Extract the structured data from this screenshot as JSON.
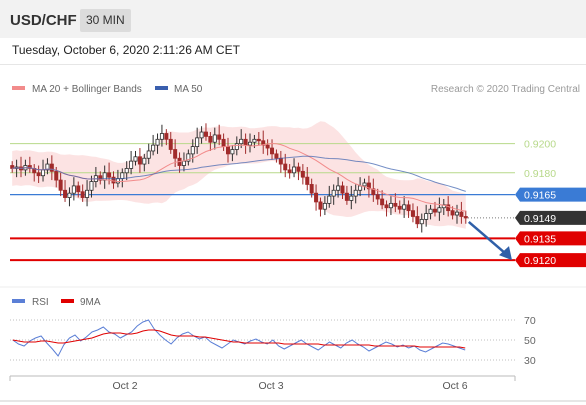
{
  "header": {
    "symbol": "USD/CHF",
    "timeframe": "30 MIN",
    "datetime": "Tuesday, October 6, 2020 2:11:26 AM CET"
  },
  "legend": {
    "ma20_label": "MA 20 + Bollinger Bands",
    "ma50_label": "MA 50",
    "ma20_color": "#f28b8b",
    "ma50_color": "#3a5fae",
    "watermark": "Research © 2020 Trading Central"
  },
  "rsi_legend": {
    "rsi_label": "RSI",
    "ma_label": "9MA",
    "rsi_color": "#5b7fd6",
    "ma_color": "#e00000"
  },
  "chart_data": [
    {
      "type": "candlestick",
      "title": "USD/CHF 30 MIN",
      "x_ticks": [
        "Oct 2",
        "Oct 3",
        "Oct 6"
      ],
      "ylim": [
        0.9105,
        0.923
      ],
      "resistance_lines": [
        0.92,
        0.918
      ],
      "key_level": 0.9165,
      "last_price": 0.9149,
      "targets": [
        0.9135,
        0.912
      ],
      "price_labels": [
        "0.9200",
        "0.9180",
        "0.9165",
        "0.9149",
        "0.9135",
        "0.9120"
      ],
      "colors": {
        "resistance": "#b7d98a",
        "key": "#3a7bd5",
        "target": "#e00000",
        "last": "#333333",
        "arrow": "#2f5fa8"
      },
      "closes": [
        0.9183,
        0.9184,
        0.9182,
        0.9185,
        0.9183,
        0.918,
        0.9178,
        0.9182,
        0.9186,
        0.9181,
        0.9175,
        0.9168,
        0.9163,
        0.9166,
        0.9171,
        0.9167,
        0.9163,
        0.9168,
        0.9174,
        0.9178,
        0.9175,
        0.918,
        0.9177,
        0.9173,
        0.9176,
        0.918,
        0.9183,
        0.9188,
        0.9191,
        0.9186,
        0.919,
        0.9195,
        0.9199,
        0.9203,
        0.9207,
        0.9203,
        0.9196,
        0.919,
        0.9185,
        0.9188,
        0.9193,
        0.9198,
        0.9204,
        0.9208,
        0.9205,
        0.9201,
        0.9206,
        0.9203,
        0.9198,
        0.9193,
        0.9196,
        0.92,
        0.9203,
        0.9199,
        0.9201,
        0.9203,
        0.9202,
        0.9199,
        0.9197,
        0.9193,
        0.919,
        0.9186,
        0.9182,
        0.918,
        0.9184,
        0.9181,
        0.9177,
        0.9172,
        0.9166,
        0.916,
        0.9155,
        0.9159,
        0.9164,
        0.9168,
        0.9171,
        0.9166,
        0.9161,
        0.9164,
        0.9168,
        0.9171,
        0.9173,
        0.9169,
        0.9165,
        0.9162,
        0.9158,
        0.9156,
        0.9159,
        0.9157,
        0.9155,
        0.9158,
        0.9154,
        0.915,
        0.9145,
        0.9148,
        0.9152,
        0.9155,
        0.9153,
        0.9156,
        0.9158,
        0.9154,
        0.9151,
        0.9153,
        0.915,
        0.9149
      ]
    },
    {
      "type": "line",
      "title": "RSI",
      "x_ticks": [
        "Oct 2",
        "Oct 3",
        "Oct 6"
      ],
      "y_ticks": [
        70,
        50,
        30
      ],
      "ylim": [
        20,
        80
      ],
      "series": [
        {
          "name": "RSI",
          "values": [
            50,
            46,
            44,
            49,
            52,
            54,
            47,
            41,
            34,
            45,
            52,
            55,
            49,
            53,
            58,
            60,
            63,
            58,
            56,
            52,
            55,
            58,
            64,
            68,
            70,
            61,
            55,
            50,
            46,
            52,
            56,
            58,
            54,
            51,
            53,
            48,
            45,
            42,
            46,
            50,
            48,
            46,
            49,
            51,
            48,
            46,
            50,
            44,
            41,
            44,
            47,
            50,
            46,
            43,
            40,
            44,
            48,
            45,
            42,
            47,
            50,
            46,
            43,
            39,
            42,
            45,
            48,
            46,
            43,
            45,
            42,
            44,
            40,
            38,
            41,
            44,
            47,
            46,
            44,
            42,
            40
          ]
        },
        {
          "name": "9MA",
          "values": [
            50,
            49,
            48,
            48,
            48,
            49,
            49,
            48,
            47,
            47,
            48,
            49,
            50,
            51,
            52,
            54,
            56,
            57,
            57,
            57,
            56,
            56,
            57,
            59,
            60,
            60,
            59,
            57,
            55,
            54,
            54,
            54,
            54,
            53,
            53,
            52,
            51,
            50,
            49,
            48,
            48,
            47,
            47,
            47,
            47,
            47,
            47,
            47,
            46,
            46,
            46,
            46,
            46,
            46,
            46,
            45,
            45,
            45,
            45,
            45,
            45,
            45,
            45,
            45,
            44,
            44,
            44,
            44,
            44,
            44,
            44,
            44,
            43,
            43,
            43,
            43,
            43,
            43,
            43,
            43,
            42
          ]
        }
      ]
    }
  ]
}
